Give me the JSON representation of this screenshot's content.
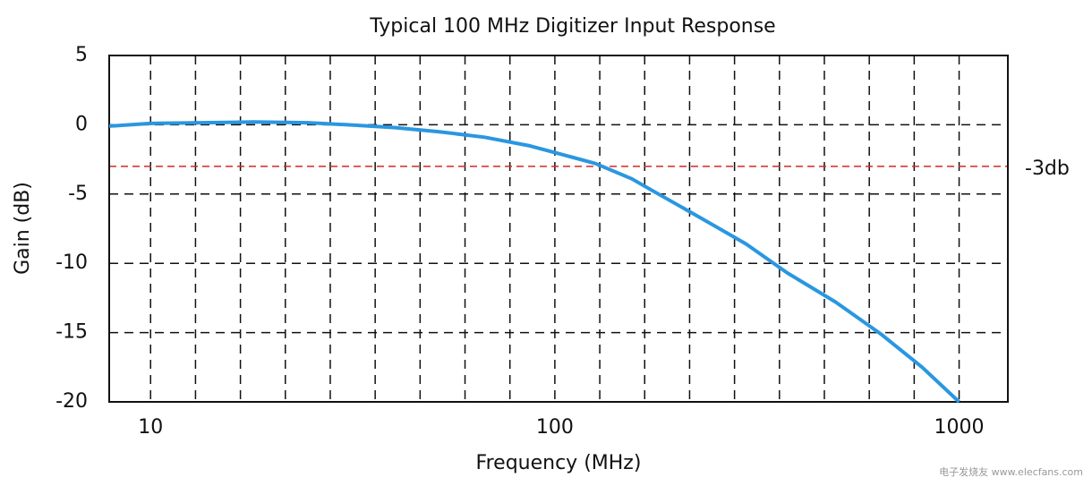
{
  "chart_data": {
    "type": "line",
    "title": "Typical 100 MHz Digitizer Input Response",
    "x_label": "Frequency (MHz)",
    "y_label": "Gain (dB)",
    "x": [
      7.9,
      10,
      18,
      24.5,
      30.7,
      40,
      51.5,
      67,
      86,
      100,
      126,
      155,
      178,
      232,
      297,
      376,
      495,
      640,
      810,
      1000
    ],
    "series": [
      {
        "name": "Input response",
        "color": "#2a97e0",
        "values": [
          -0.1,
          0.1,
          0.2,
          0.15,
          0,
          -0.2,
          -0.5,
          -0.9,
          -1.5,
          -2.0,
          -2.8,
          -3.9,
          -4.9,
          -6.8,
          -8.6,
          -10.7,
          -12.8,
          -15.1,
          -17.5,
          -20
        ]
      }
    ],
    "xlim": [
      7.9,
      1320
    ],
    "xticks": [
      10,
      100,
      1000
    ],
    "xscale": "log",
    "ylim": [
      -20,
      5
    ],
    "yticks": [
      5,
      0,
      -5,
      -10,
      -15,
      -20
    ],
    "grid": true,
    "reference_line": {
      "value": -3,
      "label": "-3db",
      "color": "#d62728"
    },
    "watermark": "电子发烧友 www.elecfans.com"
  }
}
